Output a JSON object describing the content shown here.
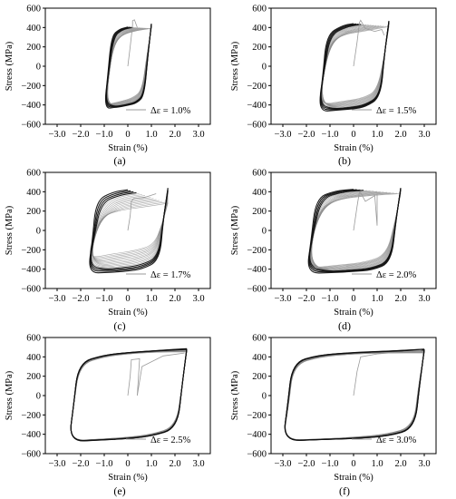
{
  "chart_data": [
    {
      "type": "line",
      "panel_label": "(a)",
      "strain_amplitude_label": "Δε = 1.0%",
      "amplitude_pct": 0.5,
      "xlabel": "Strain (%)",
      "ylabel": "Stress (MPa)",
      "xlim": [
        -3.5,
        3.5
      ],
      "ylim": [
        -600,
        600
      ],
      "xticks": [
        -3.0,
        -2.0,
        -1.0,
        0,
        1.0,
        2.0,
        3.0
      ],
      "yticks": [
        -600,
        -400,
        -200,
        0,
        200,
        400,
        600
      ],
      "series": [
        {
          "role": "initial-loading",
          "points": [
            [
              0,
              0
            ],
            [
              0.1,
              200
            ],
            [
              0.2,
              420
            ],
            [
              0.2,
              470
            ],
            [
              0.28,
              480
            ],
            [
              0.4,
              400
            ]
          ]
        },
        {
          "role": "first-cycle",
          "points": [
            [
              1.0,
              390
            ],
            [
              0.8,
              100
            ],
            [
              0.6,
              -250
            ],
            [
              0.2,
              -330
            ],
            [
              -0.4,
              -370
            ],
            [
              -1.0,
              -400
            ],
            [
              -0.8,
              -100
            ],
            [
              -0.6,
              250
            ],
            [
              -0.2,
              330
            ],
            [
              0.4,
              370
            ],
            [
              1.0,
              390
            ]
          ]
        },
        {
          "role": "stabilized-cycle",
          "points": [
            [
              1.0,
              440
            ],
            [
              0.85,
              100
            ],
            [
              0.7,
              -300
            ],
            [
              0.4,
              -380
            ],
            [
              0,
              -405
            ],
            [
              -0.5,
              -425
            ],
            [
              -1.0,
              -440
            ],
            [
              -0.85,
              -100
            ],
            [
              -0.7,
              300
            ],
            [
              -0.4,
              380
            ],
            [
              0,
              405
            ],
            [
              0.5,
              425
            ],
            [
              1.0,
              440
            ]
          ]
        }
      ]
    },
    {
      "type": "line",
      "panel_label": "(b)",
      "strain_amplitude_label": "Δε = 1.5%",
      "amplitude_pct": 0.75,
      "xlabel": "Strain (%)",
      "ylabel": "Stress (MPa)",
      "xlim": [
        -3.5,
        3.5
      ],
      "ylim": [
        -600,
        600
      ],
      "xticks": [
        -3.0,
        -2.0,
        -1.0,
        0,
        1.0,
        2.0,
        3.0
      ],
      "yticks": [
        -600,
        -400,
        -200,
        0,
        200,
        400,
        600
      ],
      "series": [
        {
          "role": "initial-loading",
          "points": [
            [
              0,
              0
            ],
            [
              0.15,
              250
            ],
            [
              0.25,
              450
            ],
            [
              0.3,
              475
            ],
            [
              0.5,
              390
            ],
            [
              0.9,
              360
            ],
            [
              1.2,
              380
            ],
            [
              1.3,
              320
            ]
          ]
        },
        {
          "role": "first-cycle",
          "points": [
            [
              1.5,
              410
            ],
            [
              1.3,
              100
            ],
            [
              1.0,
              -250
            ],
            [
              0.4,
              -330
            ],
            [
              -0.4,
              -360
            ],
            [
              -1.5,
              -400
            ],
            [
              -1.3,
              -100
            ],
            [
              -1.0,
              250
            ],
            [
              -0.4,
              330
            ],
            [
              0.4,
              360
            ],
            [
              1.5,
              410
            ]
          ]
        },
        {
          "role": "stabilized-cycle",
          "points": [
            [
              1.5,
              470
            ],
            [
              1.3,
              100
            ],
            [
              1.15,
              -320
            ],
            [
              0.5,
              -420
            ],
            [
              0,
              -440
            ],
            [
              -0.7,
              -455
            ],
            [
              -1.5,
              -470
            ],
            [
              -1.3,
              -100
            ],
            [
              -1.15,
              320
            ],
            [
              -0.5,
              420
            ],
            [
              0,
              440
            ],
            [
              0.7,
              455
            ],
            [
              1.5,
              470
            ]
          ]
        }
      ]
    },
    {
      "type": "line",
      "panel_label": "(c)",
      "strain_amplitude_label": "Δε = 1.7%",
      "amplitude_pct": 0.85,
      "xlabel": "Strain (%)",
      "ylabel": "Stress (MPa)",
      "xlim": [
        -3.5,
        3.5
      ],
      "ylim": [
        -600,
        600
      ],
      "xticks": [
        -3.0,
        -2.0,
        -1.0,
        0,
        1.0,
        2.0,
        3.0
      ],
      "yticks": [
        -600,
        -400,
        -200,
        0,
        200,
        400,
        600
      ],
      "series": [
        {
          "role": "initial-loading",
          "points": [
            [
              0,
              0
            ],
            [
              0.1,
              150
            ],
            [
              0.15,
              300
            ],
            [
              0.25,
              330
            ],
            [
              0.7,
              340
            ],
            [
              1.2,
              380
            ]
          ]
        },
        {
          "role": "first-cycle",
          "points": [
            [
              1.7,
              280
            ],
            [
              1.45,
              60
            ],
            [
              1.1,
              -150
            ],
            [
              0.3,
              -210
            ],
            [
              -0.6,
              -240
            ],
            [
              -1.7,
              -290
            ],
            [
              -1.45,
              -60
            ],
            [
              -1.1,
              150
            ],
            [
              -0.3,
              210
            ],
            [
              0.6,
              240
            ],
            [
              1.7,
              280
            ]
          ]
        },
        {
          "role": "stabilized-cycle",
          "points": [
            [
              1.7,
              440
            ],
            [
              1.5,
              100
            ],
            [
              1.35,
              -310
            ],
            [
              0.6,
              -400
            ],
            [
              0,
              -420
            ],
            [
              -0.8,
              -435
            ],
            [
              -1.7,
              -440
            ],
            [
              -1.5,
              -100
            ],
            [
              -1.35,
              310
            ],
            [
              -0.6,
              400
            ],
            [
              0,
              420
            ],
            [
              0.8,
              435
            ],
            [
              1.7,
              440
            ]
          ]
        }
      ]
    },
    {
      "type": "line",
      "panel_label": "(d)",
      "strain_amplitude_label": "Δε = 2.0%",
      "amplitude_pct": 1.0,
      "xlabel": "Strain (%)",
      "ylabel": "Stress (MPa)",
      "xlim": [
        -3.5,
        3.5
      ],
      "ylim": [
        -600,
        600
      ],
      "xticks": [
        -3.0,
        -2.0,
        -1.0,
        0,
        1.0,
        2.0,
        3.0
      ],
      "yticks": [
        -600,
        -400,
        -200,
        0,
        200,
        400,
        600
      ],
      "series": [
        {
          "role": "initial-loading",
          "points": [
            [
              0,
              0
            ],
            [
              0.15,
              250
            ],
            [
              0.25,
              400
            ],
            [
              0.3,
              390
            ],
            [
              0.5,
              300
            ],
            [
              0.9,
              360
            ],
            [
              1.0,
              50
            ],
            [
              1.0,
              380
            ]
          ]
        },
        {
          "role": "first-cycle",
          "points": [
            [
              2.0,
              380
            ],
            [
              1.75,
              80
            ],
            [
              1.4,
              -250
            ],
            [
              0.5,
              -330
            ],
            [
              -0.7,
              -360
            ],
            [
              -2.0,
              -390
            ],
            [
              -1.75,
              -80
            ],
            [
              -1.4,
              250
            ],
            [
              -0.5,
              330
            ],
            [
              0.7,
              360
            ],
            [
              2.0,
              380
            ]
          ]
        },
        {
          "role": "stabilized-cycle",
          "points": [
            [
              2.0,
              440
            ],
            [
              1.8,
              100
            ],
            [
              1.6,
              -330
            ],
            [
              0.8,
              -410
            ],
            [
              0,
              -425
            ],
            [
              -0.9,
              -435
            ],
            [
              -2.0,
              -445
            ],
            [
              -1.8,
              -100
            ],
            [
              -1.6,
              330
            ],
            [
              -0.8,
              410
            ],
            [
              0,
              425
            ],
            [
              0.9,
              435
            ],
            [
              2.0,
              440
            ]
          ]
        }
      ]
    },
    {
      "type": "line",
      "panel_label": "(e)",
      "strain_amplitude_label": "Δε = 2.5%",
      "amplitude_pct": 1.25,
      "xlabel": "Strain (%)",
      "ylabel": "Stress (MPa)",
      "xlim": [
        -3.5,
        3.5
      ],
      "ylim": [
        -600,
        600
      ],
      "xticks": [
        -3.0,
        -2.0,
        -1.0,
        0,
        1.0,
        2.0,
        3.0
      ],
      "yticks": [
        -600,
        -400,
        -200,
        0,
        200,
        400,
        600
      ],
      "series": [
        {
          "role": "initial-loading",
          "points": [
            [
              0,
              0
            ],
            [
              0.1,
              200
            ],
            [
              0.15,
              370
            ],
            [
              0.5,
              380
            ],
            [
              0.4,
              0
            ],
            [
              0.6,
              300
            ],
            [
              1.5,
              410
            ],
            [
              2.4,
              440
            ]
          ]
        },
        {
          "role": "first-cycle",
          "points": [
            [
              2.5,
              450
            ],
            [
              2.3,
              100
            ],
            [
              2.05,
              -320
            ],
            [
              1.0,
              -400
            ],
            [
              0,
              -430
            ],
            [
              -1.2,
              -450
            ],
            [
              -2.5,
              -465
            ],
            [
              -2.3,
              -100
            ],
            [
              -2.05,
              320
            ],
            [
              -1.0,
              400
            ],
            [
              0,
              430
            ],
            [
              1.2,
              450
            ],
            [
              2.5,
              450
            ]
          ]
        },
        {
          "role": "stabilized-cycle",
          "points": [
            [
              2.5,
              485
            ],
            [
              2.3,
              100
            ],
            [
              2.1,
              -340
            ],
            [
              1.0,
              -420
            ],
            [
              0,
              -445
            ],
            [
              -1.2,
              -460
            ],
            [
              -2.5,
              -475
            ],
            [
              -2.3,
              -100
            ],
            [
              -2.1,
              340
            ],
            [
              -1.0,
              420
            ],
            [
              0,
              445
            ],
            [
              1.2,
              465
            ],
            [
              2.5,
              485
            ]
          ]
        }
      ]
    },
    {
      "type": "line",
      "panel_label": "(f)",
      "strain_amplitude_label": "Δε = 3.0%",
      "amplitude_pct": 1.5,
      "xlabel": "Strain (%)",
      "ylabel": "Stress (MPa)",
      "xlim": [
        -3.5,
        3.5
      ],
      "ylim": [
        -600,
        600
      ],
      "xticks": [
        -3.0,
        -2.0,
        -1.0,
        0,
        1.0,
        2.0,
        3.0
      ],
      "yticks": [
        -600,
        -400,
        -200,
        0,
        200,
        400,
        600
      ],
      "series": [
        {
          "role": "initial-loading",
          "points": [
            [
              0,
              0
            ],
            [
              0.15,
              250
            ],
            [
              0.3,
              400
            ],
            [
              1.0,
              430
            ],
            [
              2.0,
              450
            ],
            [
              2.9,
              470
            ]
          ]
        },
        {
          "role": "first-cycle",
          "points": [
            [
              3.0,
              440
            ],
            [
              2.75,
              100
            ],
            [
              2.55,
              -320
            ],
            [
              1.4,
              -400
            ],
            [
              0,
              -430
            ],
            [
              -1.5,
              -450
            ],
            [
              -3.0,
              -460
            ],
            [
              -2.75,
              -100
            ],
            [
              -2.55,
              320
            ],
            [
              -1.4,
              400
            ],
            [
              0,
              430
            ],
            [
              1.5,
              440
            ],
            [
              3.0,
              440
            ]
          ]
        },
        {
          "role": "stabilized-cycle",
          "points": [
            [
              3.0,
              480
            ],
            [
              2.8,
              100
            ],
            [
              2.6,
              -340
            ],
            [
              1.5,
              -420
            ],
            [
              0,
              -445
            ],
            [
              -1.5,
              -455
            ],
            [
              -3.0,
              -470
            ],
            [
              -2.8,
              -100
            ],
            [
              -2.6,
              340
            ],
            [
              -1.5,
              420
            ],
            [
              0,
              445
            ],
            [
              1.5,
              460
            ],
            [
              3.0,
              480
            ]
          ]
        }
      ]
    }
  ]
}
